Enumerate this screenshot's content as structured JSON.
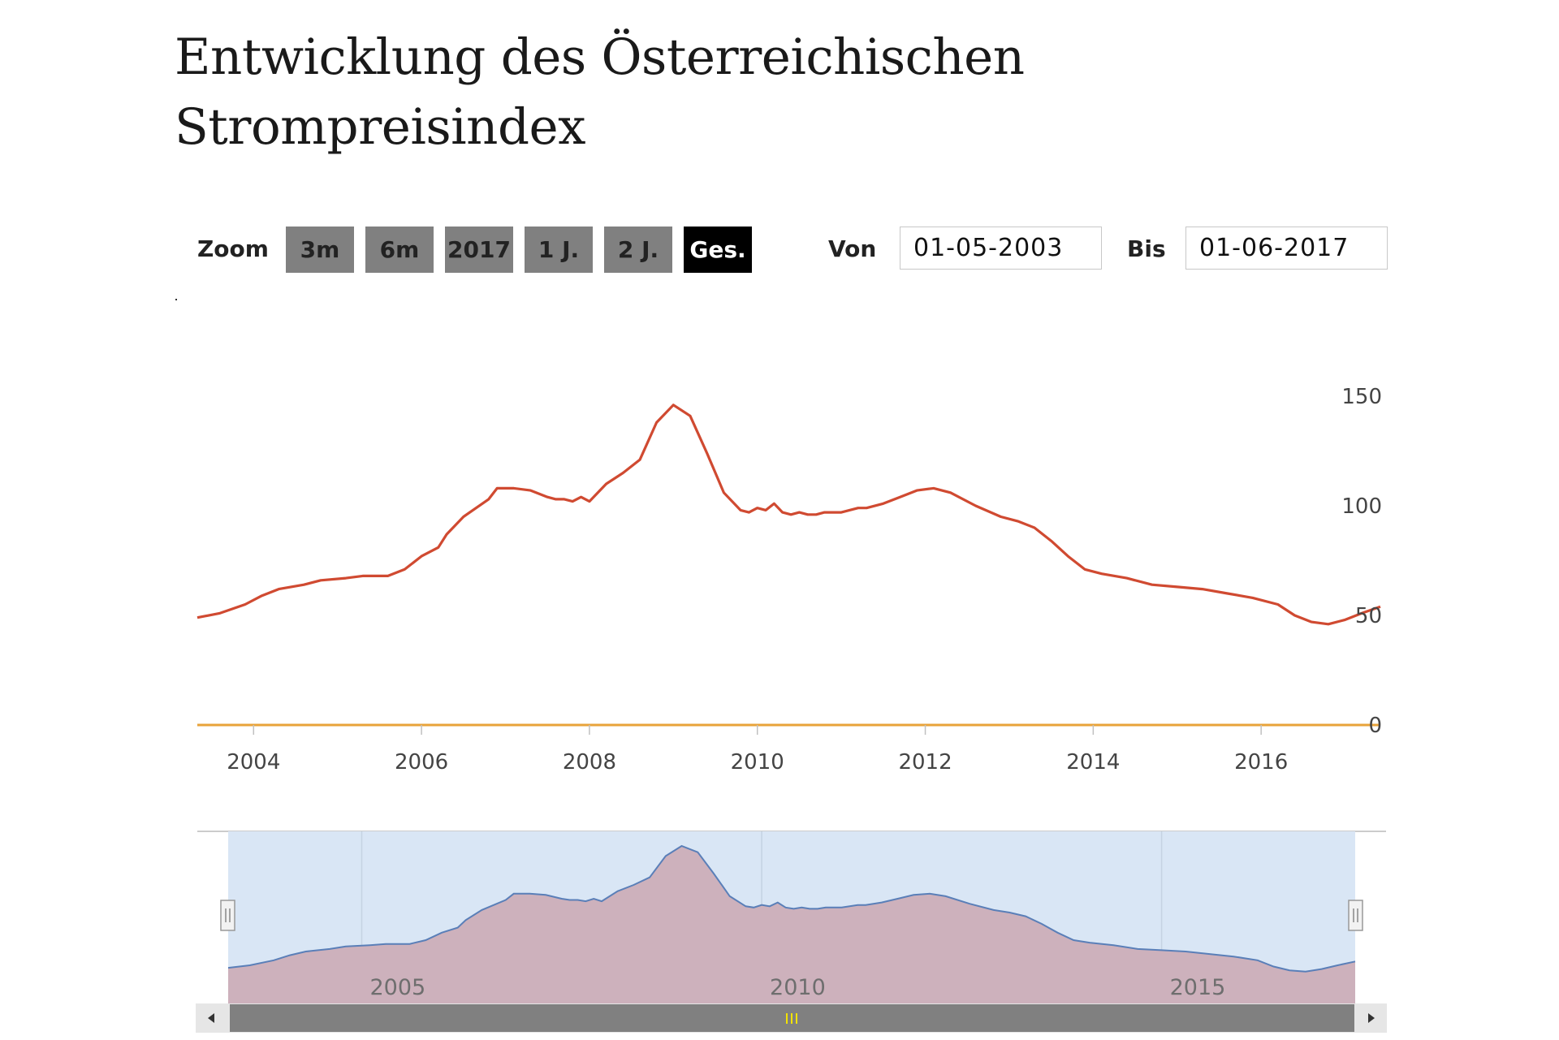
{
  "title": "Entwicklung des Österreichischen Strompreisindex",
  "range_selector": {
    "zoom_label": "Zoom",
    "buttons": [
      {
        "label": "3m",
        "active": false
      },
      {
        "label": "6m",
        "active": false
      },
      {
        "label": "2017",
        "active": false
      },
      {
        "label": "1 J.",
        "active": false
      },
      {
        "label": "2 J.",
        "active": false
      },
      {
        "label": "Ges.",
        "active": true
      }
    ],
    "from_label": "Von",
    "from_value": "01-05-2003",
    "to_label": "Bis",
    "to_value": "01-06-2017"
  },
  "colors": {
    "series_line": "#d04a31",
    "zero_line": "#e8a33a",
    "navigator_fill": "#cdb1bc",
    "navigator_line": "#5a7fb8",
    "navigator_mask": "#d9e6f5",
    "scrollbar": "#808080",
    "scrollbar_grip": "#f2e200"
  },
  "chart_data": {
    "type": "line",
    "x_unit": "year",
    "yticks": [
      "0",
      "50",
      "100",
      "150"
    ],
    "ylim": [
      0,
      150
    ],
    "xticks": [
      "2004",
      "2006",
      "2008",
      "2010",
      "2012",
      "2014",
      "2016"
    ],
    "xlim": [
      2003.33,
      2017.42
    ],
    "grid": false,
    "series": [
      {
        "x": [
          2003.33,
          2003.6,
          2003.9,
          2004.1,
          2004.3,
          2004.6,
          2004.8,
          2005.1,
          2005.3,
          2005.6,
          2005.8,
          2006.0,
          2006.2,
          2006.3,
          2006.5,
          2006.8,
          2006.9,
          2007.1,
          2007.3,
          2007.5,
          2007.6,
          2007.7,
          2007.8,
          2007.9,
          2008.0,
          2008.2,
          2008.4,
          2008.6,
          2008.8,
          2009.0,
          2009.2,
          2009.4,
          2009.6,
          2009.8,
          2009.9,
          2010.0,
          2010.1,
          2010.2,
          2010.3,
          2010.4,
          2010.5,
          2010.6,
          2010.7,
          2010.8,
          2011.0,
          2011.2,
          2011.3,
          2011.5,
          2011.7,
          2011.9,
          2012.1,
          2012.3,
          2012.6,
          2012.9,
          2013.1,
          2013.3,
          2013.5,
          2013.7,
          2013.9,
          2014.1,
          2014.4,
          2014.7,
          2015.0,
          2015.3,
          2015.6,
          2015.9,
          2016.2,
          2016.4,
          2016.6,
          2016.8,
          2017.0,
          2017.2,
          2017.42
        ],
        "y": [
          49,
          51,
          55,
          59,
          62,
          64,
          66,
          67,
          68,
          68,
          71,
          77,
          81,
          87,
          95,
          103,
          108,
          108,
          107,
          104,
          103,
          103,
          102,
          104,
          102,
          110,
          115,
          121,
          138,
          146,
          141,
          124,
          106,
          98,
          97,
          99,
          98,
          101,
          97,
          96,
          97,
          96,
          96,
          97,
          97,
          99,
          99,
          101,
          104,
          107,
          108,
          106,
          100,
          95,
          93,
          90,
          84,
          77,
          71,
          69,
          67,
          64,
          63,
          62,
          60,
          58,
          55,
          50,
          47,
          46,
          48,
          51,
          54
        ]
      }
    ],
    "navigator": {
      "xticks": [
        "2005",
        "2010",
        "2015"
      ]
    }
  }
}
